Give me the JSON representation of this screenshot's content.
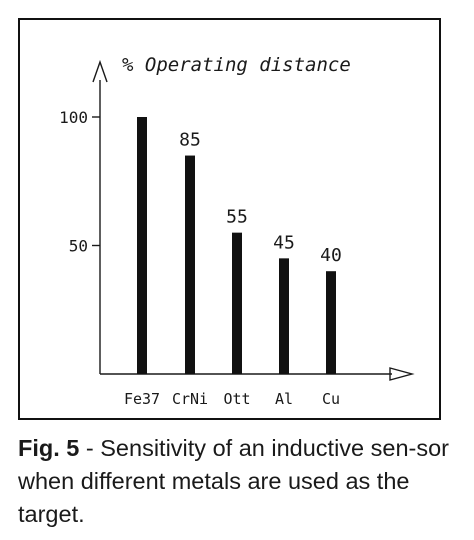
{
  "chart_data": {
    "type": "bar",
    "title": "% Operating distance",
    "categories": [
      "Fe37",
      "CrNi",
      "Ott",
      "Al",
      "Cu"
    ],
    "values": [
      100,
      85,
      55,
      45,
      40
    ],
    "data_labels": [
      "",
      "85",
      "55",
      "45",
      "40"
    ],
    "y_ticks": [
      100,
      50
    ],
    "ylim": [
      0,
      100
    ],
    "xlabel": "",
    "ylabel": "",
    "grid": false,
    "colors": {
      "bar": "#111111"
    }
  },
  "caption": {
    "label": "Fig. 5",
    "text": " - Sensitivity of an inductive sen-sor when different metals are used as the target."
  }
}
